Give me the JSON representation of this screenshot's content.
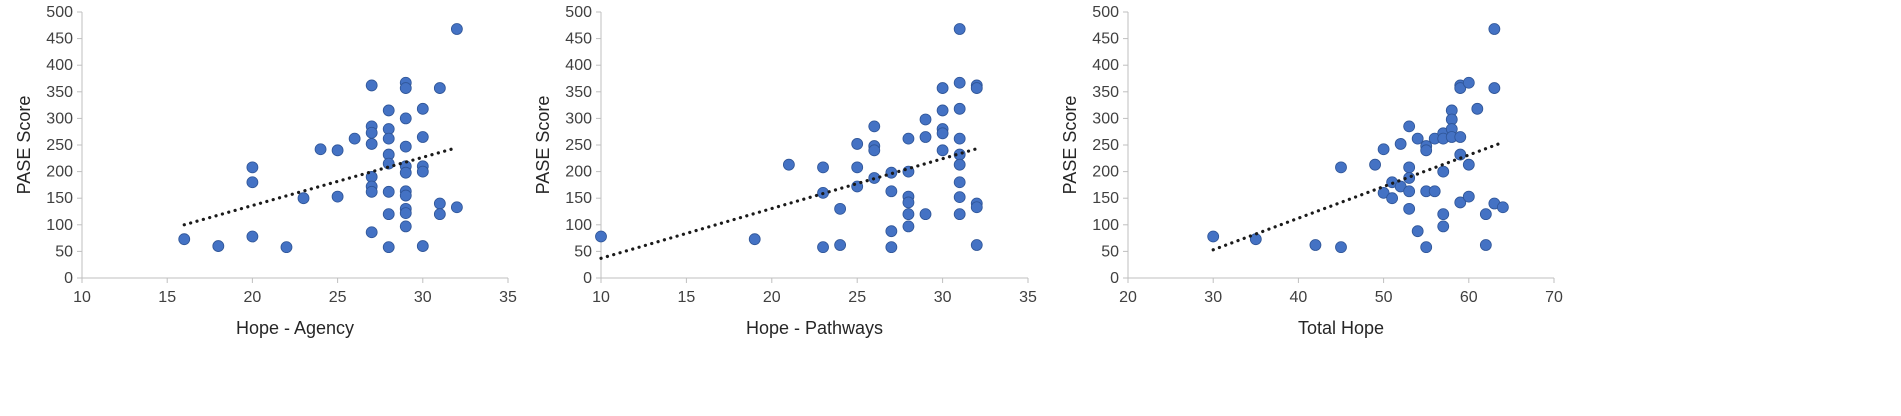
{
  "chart_data": [
    {
      "type": "scatter",
      "xlabel": "Hope - Agency",
      "ylabel": "PASE Score",
      "xlim": [
        10,
        35
      ],
      "ylim": [
        0,
        500
      ],
      "xticks": [
        10,
        15,
        20,
        25,
        30,
        35
      ],
      "yticks": [
        0,
        50,
        100,
        150,
        200,
        250,
        300,
        350,
        400,
        450,
        500
      ],
      "grid": false,
      "trendline": {
        "style": "dotted",
        "x": [
          16,
          32
        ],
        "y": [
          100,
          245
        ]
      },
      "points": [
        [
          16,
          73
        ],
        [
          18,
          60
        ],
        [
          20,
          208
        ],
        [
          20,
          180
        ],
        [
          20,
          78
        ],
        [
          22,
          58
        ],
        [
          23,
          150
        ],
        [
          24,
          242
        ],
        [
          25,
          240
        ],
        [
          25,
          153
        ],
        [
          26,
          262
        ],
        [
          27,
          362
        ],
        [
          27,
          285
        ],
        [
          27,
          273
        ],
        [
          27,
          252
        ],
        [
          27,
          190
        ],
        [
          27,
          172
        ],
        [
          27,
          162
        ],
        [
          27,
          86
        ],
        [
          28,
          315
        ],
        [
          28,
          280
        ],
        [
          28,
          262
        ],
        [
          28,
          232
        ],
        [
          28,
          215
        ],
        [
          28,
          162
        ],
        [
          28,
          120
        ],
        [
          28,
          58
        ],
        [
          29,
          367
        ],
        [
          29,
          357
        ],
        [
          29,
          300
        ],
        [
          29,
          247
        ],
        [
          29,
          210
        ],
        [
          29,
          198
        ],
        [
          29,
          163
        ],
        [
          29,
          155
        ],
        [
          29,
          130
        ],
        [
          29,
          122
        ],
        [
          29,
          97
        ],
        [
          30,
          318
        ],
        [
          30,
          265
        ],
        [
          30,
          210
        ],
        [
          30,
          200
        ],
        [
          30,
          60
        ],
        [
          31,
          357
        ],
        [
          31,
          140
        ],
        [
          31,
          120
        ],
        [
          32,
          468
        ],
        [
          32,
          133
        ]
      ]
    },
    {
      "type": "scatter",
      "xlabel": "Hope - Pathways",
      "ylabel": "PASE Score",
      "xlim": [
        10,
        35
      ],
      "ylim": [
        0,
        500
      ],
      "xticks": [
        10,
        15,
        20,
        25,
        30,
        35
      ],
      "yticks": [
        0,
        50,
        100,
        150,
        200,
        250,
        300,
        350,
        400,
        450,
        500
      ],
      "grid": false,
      "trendline": {
        "style": "dotted",
        "x": [
          10,
          32
        ],
        "y": [
          37,
          243
        ]
      },
      "points": [
        [
          10,
          78
        ],
        [
          19,
          73
        ],
        [
          21,
          213
        ],
        [
          23,
          208
        ],
        [
          23,
          160
        ],
        [
          23,
          58
        ],
        [
          24,
          130
        ],
        [
          24,
          62
        ],
        [
          25,
          252
        ],
        [
          25,
          208
        ],
        [
          25,
          172
        ],
        [
          26,
          285
        ],
        [
          26,
          248
        ],
        [
          26,
          240
        ],
        [
          26,
          188
        ],
        [
          27,
          198
        ],
        [
          27,
          163
        ],
        [
          27,
          88
        ],
        [
          27,
          58
        ],
        [
          28,
          262
        ],
        [
          28,
          200
        ],
        [
          28,
          153
        ],
        [
          28,
          142
        ],
        [
          28,
          120
        ],
        [
          28,
          97
        ],
        [
          29,
          298
        ],
        [
          29,
          265
        ],
        [
          29,
          120
        ],
        [
          30,
          357
        ],
        [
          30,
          315
        ],
        [
          30,
          280
        ],
        [
          30,
          272
        ],
        [
          30,
          240
        ],
        [
          31,
          468
        ],
        [
          31,
          367
        ],
        [
          31,
          318
        ],
        [
          31,
          262
        ],
        [
          31,
          232
        ],
        [
          31,
          213
        ],
        [
          31,
          180
        ],
        [
          31,
          152
        ],
        [
          31,
          120
        ],
        [
          32,
          362
        ],
        [
          32,
          357
        ],
        [
          32,
          140
        ],
        [
          32,
          133
        ],
        [
          32,
          62
        ]
      ]
    },
    {
      "type": "scatter",
      "xlabel": "Total Hope",
      "ylabel": "PASE Score",
      "xlim": [
        20,
        70
      ],
      "ylim": [
        0,
        500
      ],
      "xticks": [
        20,
        30,
        40,
        50,
        60,
        70
      ],
      "yticks": [
        0,
        50,
        100,
        150,
        200,
        250,
        300,
        350,
        400,
        450,
        500
      ],
      "grid": false,
      "trendline": {
        "style": "dotted",
        "x": [
          30,
          64
        ],
        "y": [
          53,
          255
        ]
      },
      "points": [
        [
          30,
          78
        ],
        [
          35,
          73
        ],
        [
          42,
          62
        ],
        [
          45,
          208
        ],
        [
          45,
          58
        ],
        [
          49,
          213
        ],
        [
          50,
          242
        ],
        [
          50,
          160
        ],
        [
          51,
          180
        ],
        [
          51,
          150
        ],
        [
          52,
          252
        ],
        [
          52,
          172
        ],
        [
          53,
          285
        ],
        [
          53,
          208
        ],
        [
          53,
          188
        ],
        [
          53,
          163
        ],
        [
          53,
          130
        ],
        [
          54,
          262
        ],
        [
          54,
          88
        ],
        [
          55,
          248
        ],
        [
          55,
          240
        ],
        [
          55,
          163
        ],
        [
          55,
          58
        ],
        [
          56,
          262
        ],
        [
          56,
          163
        ],
        [
          57,
          272
        ],
        [
          57,
          262
        ],
        [
          57,
          200
        ],
        [
          57,
          120
        ],
        [
          57,
          97
        ],
        [
          58,
          315
        ],
        [
          58,
          298
        ],
        [
          58,
          280
        ],
        [
          58,
          265
        ],
        [
          59,
          362
        ],
        [
          59,
          357
        ],
        [
          59,
          265
        ],
        [
          59,
          232
        ],
        [
          59,
          142
        ],
        [
          60,
          367
        ],
        [
          60,
          213
        ],
        [
          60,
          153
        ],
        [
          61,
          318
        ],
        [
          62,
          120
        ],
        [
          62,
          62
        ],
        [
          63,
          468
        ],
        [
          63,
          357
        ],
        [
          63,
          140
        ],
        [
          64,
          133
        ]
      ]
    }
  ],
  "colors": {
    "marker": "#4472C4",
    "marker_edge": "#2F5597",
    "trendline": "#1a1a1a",
    "axis": "#BFBFBF"
  }
}
